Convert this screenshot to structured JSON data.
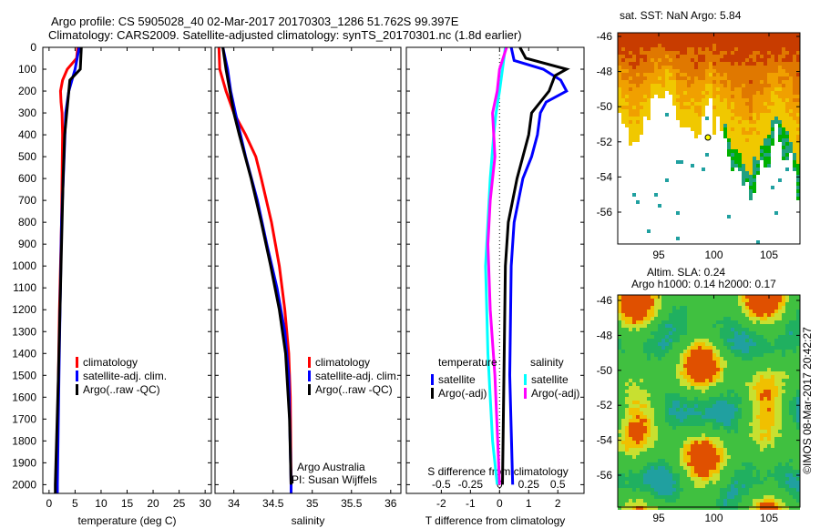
{
  "title_line1": "Argo profile: CS 5905028_40 02-Mar-2017 20170303_1286 51.762S 99.397E",
  "title_line2": "Climatology: CARS2009. Satellite-adjusted climatology: synTS_20170301.nc (1.8d earlier)",
  "credit_line1": "Argo Australia",
  "credit_line2": "PI: Susan Wijffels",
  "timestamp": "©IMOS 08-Mar-2017 20:42:27",
  "colors": {
    "climatology": "#ff0000",
    "satellite": "#0000ff",
    "argo": "#000000",
    "sal_satellite": "#00ffff",
    "sal_argo": "#ff00ff"
  },
  "chart_data": [
    {
      "type": "line",
      "xlabel": "temperature (deg C)",
      "ylabel": "",
      "xlim": [
        -1.2,
        31.2
      ],
      "ylim": [
        2040,
        0
      ],
      "xticks": [
        "0",
        "5",
        "10",
        "15",
        "20",
        "25",
        "30"
      ],
      "xtick_values": [
        0,
        5,
        10,
        15,
        20,
        25,
        30
      ],
      "yticks": [
        "0",
        "100",
        "200",
        "300",
        "400",
        "500",
        "600",
        "700",
        "800",
        "900",
        "1000",
        "1100",
        "1200",
        "1300",
        "1400",
        "1500",
        "1600",
        "1700",
        "1800",
        "1900",
        "2000"
      ],
      "legend": [
        "climatology",
        "satellite-adj. clim.",
        "Argo(..raw -QC)"
      ],
      "series": [
        {
          "name": "climatology",
          "color": "#ff0000",
          "depth": [
            0,
            50,
            100,
            150,
            200,
            250,
            300,
            400,
            600,
            800,
            1000,
            1200,
            1500,
            2000,
            2040
          ],
          "values": [
            5.5,
            5.3,
            3.5,
            2.6,
            2.2,
            2.3,
            2.5,
            2.6,
            2.5,
            2.4,
            2.2,
            2.0,
            1.8,
            1.4,
            1.4
          ]
        },
        {
          "name": "satellite-adj. clim.",
          "color": "#0000ff",
          "depth": [
            0,
            100,
            200,
            300,
            500,
            800,
            1500,
            2000,
            2040
          ],
          "values": [
            5.8,
            5.0,
            3.8,
            3.2,
            2.9,
            2.4,
            1.9,
            1.6,
            1.6
          ]
        },
        {
          "name": "Argo(..raw -QC)",
          "color": "#000000",
          "depth": [
            0,
            100,
            150,
            300,
            400,
            600,
            1000,
            1500,
            2000,
            2040
          ],
          "values": [
            6.2,
            6.0,
            4.0,
            3.4,
            3.0,
            2.7,
            2.3,
            1.8,
            1.2,
            1.2
          ]
        }
      ]
    },
    {
      "type": "line",
      "xlabel": "salinity",
      "xlim": [
        33.76,
        36.13
      ],
      "ylim": [
        2040,
        0
      ],
      "xticks": [
        "34",
        "34.5",
        "35",
        "35.5",
        "36"
      ],
      "xtick_values": [
        34,
        34.5,
        35,
        35.5,
        36
      ],
      "legend": [
        "climatology",
        "satellite-adj. clim.",
        "Argo(..raw -QC)"
      ],
      "series": [
        {
          "name": "climatology",
          "color": "#ff0000",
          "depth": [
            0,
            100,
            200,
            300,
            400,
            500,
            600,
            800,
            1000,
            1200,
            1400,
            1600,
            2000,
            2040
          ],
          "values": [
            33.81,
            33.82,
            33.9,
            34.0,
            34.15,
            34.28,
            34.35,
            34.48,
            34.58,
            34.65,
            34.7,
            34.72,
            34.73,
            34.73
          ]
        },
        {
          "name": "satellite-adj. clim.",
          "color": "#0000ff",
          "depth": [
            0,
            100,
            200,
            300,
            500,
            700,
            900,
            1100,
            1300,
            1500,
            2000,
            2040
          ],
          "values": [
            33.86,
            33.92,
            33.96,
            34.02,
            34.15,
            34.3,
            34.42,
            34.55,
            34.65,
            34.7,
            34.73,
            34.73
          ]
        },
        {
          "name": "Argo(..raw -QC)",
          "color": "#000000",
          "depth": [
            0,
            100,
            200,
            300,
            400,
            600,
            800,
            1000,
            1200,
            1400,
            1700,
            2000
          ],
          "values": [
            33.86,
            33.9,
            33.95,
            34.0,
            34.07,
            34.22,
            34.35,
            34.47,
            34.58,
            34.66,
            34.71,
            34.73
          ]
        }
      ]
    },
    {
      "type": "line",
      "xlabel": "T difference from climatology",
      "x2label": "S difference from climatology",
      "xlim": [
        -3.2,
        2.9
      ],
      "ylim": [
        2040,
        0
      ],
      "xticks": [
        "-2",
        "-1",
        "0",
        "1",
        "2"
      ],
      "xtick_values": [
        -2,
        -1,
        0,
        1,
        2
      ],
      "x2ticks": [
        "-0.5",
        "-0.25",
        "0",
        "0.25",
        "0.5"
      ],
      "x2tick_values": [
        -0.5,
        -0.25,
        0,
        0.25,
        0.5
      ],
      "legend_temperature_title": "temperature",
      "legend_salinity_title": "salinity",
      "legend": [
        "satellite",
        "Argo(-adj)",
        "satellite",
        "Argo(-adj)"
      ],
      "series": [
        {
          "name": "temperature satellite",
          "units": "T",
          "color": "#0000ff",
          "depth": [
            0,
            60,
            100,
            150,
            200,
            250,
            300,
            400,
            500,
            600,
            800,
            1000,
            1500,
            2000
          ],
          "values": [
            0.4,
            0.5,
            1.5,
            2.1,
            2.3,
            1.6,
            1.4,
            1.3,
            1.1,
            0.8,
            0.5,
            0.4,
            0.35,
            0.45
          ]
        },
        {
          "name": "temperature Argo(-adj)",
          "units": "T",
          "color": "#000000",
          "depth": [
            0,
            50,
            100,
            130,
            200,
            300,
            400,
            500,
            600,
            800,
            1000,
            1500,
            2000
          ],
          "values": [
            0.7,
            0.9,
            2.3,
            1.9,
            1.7,
            1.1,
            1.0,
            0.8,
            0.6,
            0.3,
            0.2,
            0.15,
            0.1
          ]
        },
        {
          "name": "salinity satellite",
          "units": "S",
          "color": "#00ffff",
          "depth": [
            0,
            200,
            300,
            400,
            600,
            800,
            1000,
            1400,
            1800,
            2000
          ],
          "values": [
            0.05,
            0.0,
            -0.03,
            -0.05,
            -0.08,
            -0.1,
            -0.12,
            -0.1,
            -0.06,
            -0.02
          ]
        },
        {
          "name": "salinity Argo(-adj)",
          "units": "S",
          "color": "#ff00ff",
          "depth": [
            0,
            100,
            200,
            300,
            500,
            700,
            900,
            1200,
            1500,
            2000
          ],
          "values": [
            0.06,
            0.0,
            -0.02,
            -0.06,
            -0.04,
            -0.08,
            -0.1,
            -0.08,
            -0.04,
            0.0
          ]
        }
      ]
    },
    {
      "type": "heatmap",
      "title": "sat. SST: NaN Argo: 5.84",
      "xticks": [
        "95",
        "100",
        "105"
      ],
      "yticks": [
        "-46",
        "-48",
        "-50",
        "-52",
        "-54",
        "-56"
      ]
    },
    {
      "type": "heatmap",
      "title": "Altim. SLA: 0.24",
      "subtitle": "Argo h1000: 0.14 h2000: 0.17",
      "xticks": [
        "95",
        "100",
        "105"
      ],
      "yticks": [
        "-46",
        "-48",
        "-50",
        "-52",
        "-54",
        "-56"
      ]
    }
  ]
}
